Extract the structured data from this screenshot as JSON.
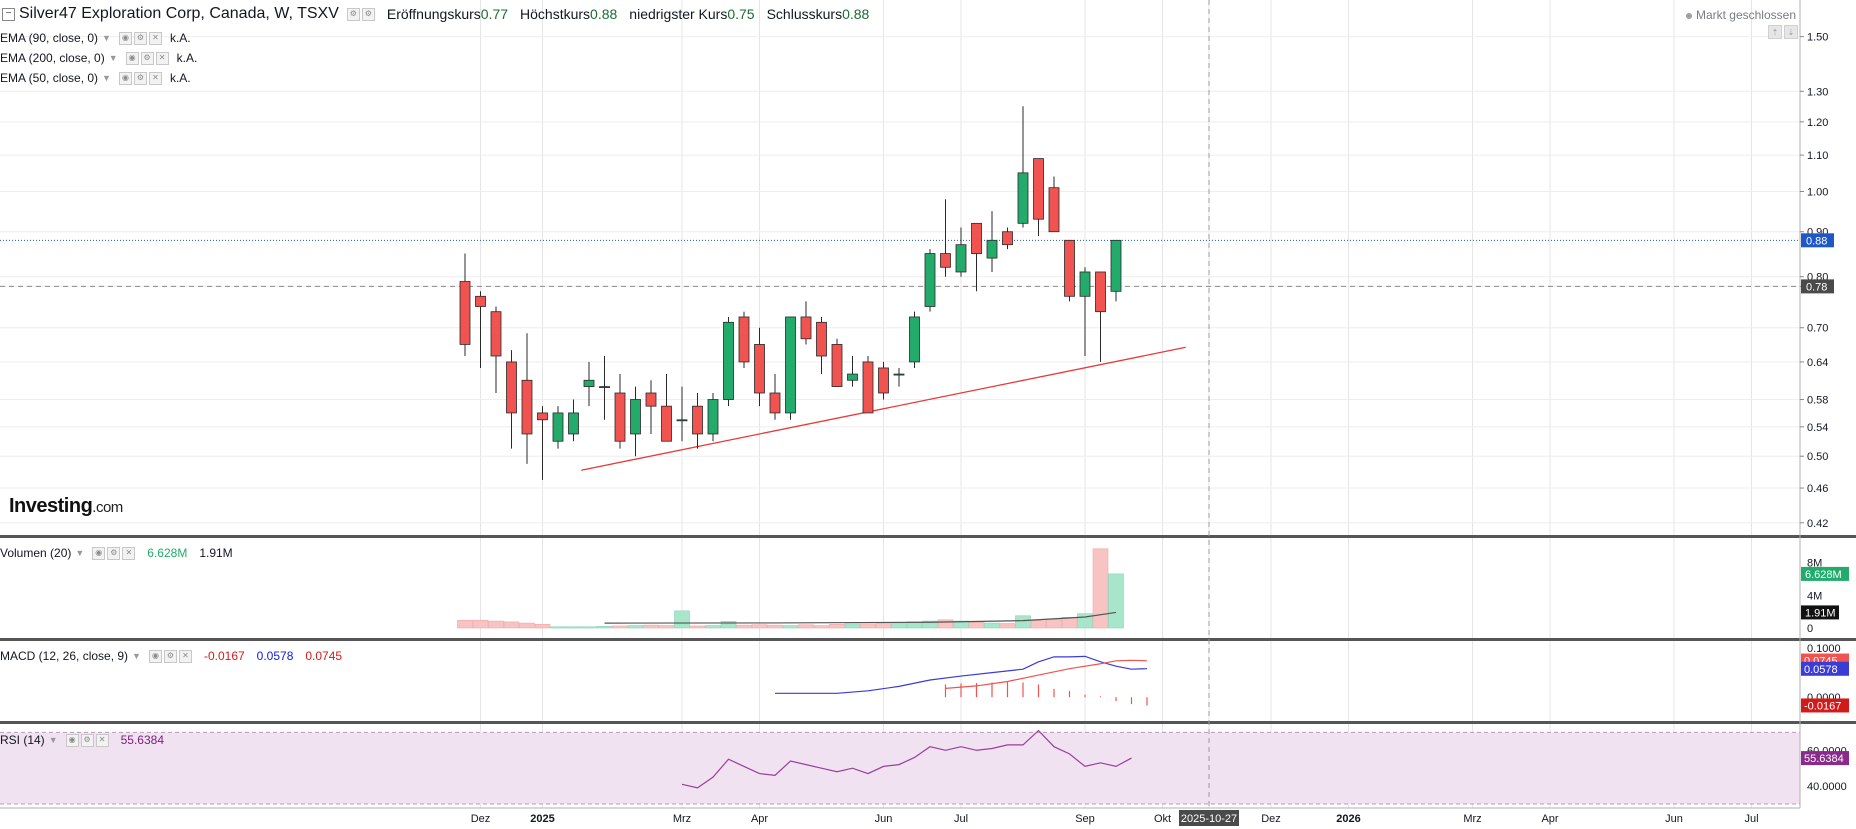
{
  "header": {
    "symbol": "Silver47 Exploration Corp, Canada, W, TSXV",
    "open_label": "Eröffnungskurs",
    "open_value": "0.77",
    "high_label": "Höchstkurs",
    "high_value": "0.88",
    "low_label": "niedrigster Kurs",
    "low_value": "0.75",
    "close_label": "Schlusskurs",
    "close_value": "0.88",
    "market_status": "Markt geschlossen"
  },
  "indicators": [
    {
      "label": "EMA (90, close, 0)",
      "value": "k.A."
    },
    {
      "label": "EMA (200, close, 0)",
      "value": "k.A."
    },
    {
      "label": "EMA (50, close, 0)",
      "value": "k.A."
    }
  ],
  "volume_panel": {
    "label": "Volumen (20)",
    "value": "6.628M",
    "ma_value": "1.91M"
  },
  "macd_panel": {
    "label": "MACD (12, 26, close, 9)",
    "hist_value": "-0.0167",
    "macd_value": "0.0578",
    "signal_value": "0.0745"
  },
  "rsi_panel": {
    "label": "RSI (14)",
    "value": "55.6384"
  },
  "logo": {
    "brand": "Investing",
    "suffix": ".com"
  },
  "colors": {
    "up": "#22ab6b",
    "down": "#f05350",
    "grid": "#e5e5e5",
    "macd": "#3b3bd6",
    "signal": "#f05350",
    "rsi": "#9c3e9c",
    "rsi_band": "#f0e2f0",
    "trend": "#e83a3a",
    "current": "#1f58c6"
  },
  "chart_data": {
    "type": "candlestick",
    "interval": "W",
    "price_axis": {
      "ticks": [
        0.42,
        0.46,
        0.5,
        0.54,
        0.58,
        0.64,
        0.7,
        0.78,
        0.8,
        0.9,
        1.0,
        1.1,
        1.2,
        1.3,
        1.5
      ],
      "tick_labels": [
        "0.42",
        "0.46",
        "0.50",
        "0.54",
        "0.58",
        "0.64",
        "0.70",
        "0.78",
        "0.80",
        "0.90",
        "1.00",
        "1.10",
        "1.20",
        "1.30",
        "1.50"
      ],
      "scale": "log",
      "range": [
        0.41,
        1.6
      ]
    },
    "time_axis": {
      "labels": [
        "Dez",
        "2025",
        "Mrz",
        "Apr",
        "Jun",
        "Jul",
        "Sep",
        "Okt",
        "2025-10-27",
        "Dez",
        "2026",
        "Mrz",
        "Apr",
        "Jun",
        "Jul"
      ],
      "label_week": [
        1,
        5,
        14,
        19,
        27,
        32,
        40,
        45,
        48,
        52,
        57,
        65,
        70,
        78,
        83
      ],
      "bold": [
        false,
        true,
        false,
        false,
        false,
        false,
        false,
        false,
        true,
        false,
        true,
        false,
        false,
        false,
        false
      ],
      "highlight": [
        false,
        false,
        false,
        false,
        false,
        false,
        false,
        false,
        true,
        false,
        false,
        false,
        false,
        false,
        false
      ],
      "crosshair_week": 48
    },
    "candles": [
      {
        "o": 0.79,
        "h": 0.85,
        "l": 0.65,
        "c": 0.67
      },
      {
        "o": 0.76,
        "h": 0.77,
        "l": 0.63,
        "c": 0.74
      },
      {
        "o": 0.73,
        "h": 0.74,
        "l": 0.59,
        "c": 0.65
      },
      {
        "o": 0.64,
        "h": 0.66,
        "l": 0.51,
        "c": 0.56
      },
      {
        "o": 0.61,
        "h": 0.69,
        "l": 0.49,
        "c": 0.53
      },
      {
        "o": 0.56,
        "h": 0.57,
        "l": 0.47,
        "c": 0.55
      },
      {
        "o": 0.52,
        "h": 0.57,
        "l": 0.51,
        "c": 0.56
      },
      {
        "o": 0.53,
        "h": 0.58,
        "l": 0.52,
        "c": 0.56
      },
      {
        "o": 0.6,
        "h": 0.64,
        "l": 0.57,
        "c": 0.61
      },
      {
        "o": 0.6,
        "h": 0.65,
        "l": 0.55,
        "c": 0.6
      },
      {
        "o": 0.59,
        "h": 0.62,
        "l": 0.51,
        "c": 0.52
      },
      {
        "o": 0.53,
        "h": 0.6,
        "l": 0.5,
        "c": 0.58
      },
      {
        "o": 0.59,
        "h": 0.61,
        "l": 0.53,
        "c": 0.57
      },
      {
        "o": 0.57,
        "h": 0.62,
        "l": 0.52,
        "c": 0.52
      },
      {
        "o": 0.55,
        "h": 0.6,
        "l": 0.52,
        "c": 0.55
      },
      {
        "o": 0.57,
        "h": 0.59,
        "l": 0.51,
        "c": 0.53
      },
      {
        "o": 0.53,
        "h": 0.59,
        "l": 0.52,
        "c": 0.58
      },
      {
        "o": 0.58,
        "h": 0.72,
        "l": 0.57,
        "c": 0.71
      },
      {
        "o": 0.72,
        "h": 0.73,
        "l": 0.63,
        "c": 0.64
      },
      {
        "o": 0.67,
        "h": 0.7,
        "l": 0.57,
        "c": 0.59
      },
      {
        "o": 0.59,
        "h": 0.62,
        "l": 0.55,
        "c": 0.56
      },
      {
        "o": 0.56,
        "h": 0.72,
        "l": 0.55,
        "c": 0.72
      },
      {
        "o": 0.72,
        "h": 0.75,
        "l": 0.67,
        "c": 0.68
      },
      {
        "o": 0.71,
        "h": 0.72,
        "l": 0.62,
        "c": 0.65
      },
      {
        "o": 0.67,
        "h": 0.68,
        "l": 0.6,
        "c": 0.6
      },
      {
        "o": 0.61,
        "h": 0.65,
        "l": 0.6,
        "c": 0.62
      },
      {
        "o": 0.64,
        "h": 0.65,
        "l": 0.56,
        "c": 0.56
      },
      {
        "o": 0.63,
        "h": 0.64,
        "l": 0.58,
        "c": 0.59
      },
      {
        "o": 0.62,
        "h": 0.63,
        "l": 0.6,
        "c": 0.62
      },
      {
        "o": 0.64,
        "h": 0.73,
        "l": 0.63,
        "c": 0.72
      },
      {
        "o": 0.74,
        "h": 0.86,
        "l": 0.73,
        "c": 0.85
      },
      {
        "o": 0.85,
        "h": 0.98,
        "l": 0.8,
        "c": 0.82
      },
      {
        "o": 0.81,
        "h": 0.91,
        "l": 0.8,
        "c": 0.87
      },
      {
        "o": 0.92,
        "h": 0.92,
        "l": 0.77,
        "c": 0.85
      },
      {
        "o": 0.84,
        "h": 0.95,
        "l": 0.81,
        "c": 0.88
      },
      {
        "o": 0.9,
        "h": 0.91,
        "l": 0.86,
        "c": 0.87
      },
      {
        "o": 0.92,
        "h": 1.25,
        "l": 0.91,
        "c": 1.05
      },
      {
        "o": 1.09,
        "h": 1.09,
        "l": 0.89,
        "c": 0.93
      },
      {
        "o": 1.01,
        "h": 1.04,
        "l": 0.9,
        "c": 0.9
      },
      {
        "o": 0.88,
        "h": 0.88,
        "l": 0.75,
        "c": 0.76
      },
      {
        "o": 0.76,
        "h": 0.82,
        "l": 0.65,
        "c": 0.81
      },
      {
        "o": 0.81,
        "h": 0.81,
        "l": 0.64,
        "c": 0.73
      },
      {
        "o": 0.77,
        "h": 0.88,
        "l": 0.75,
        "c": 0.88
      }
    ],
    "trend_line": [
      [
        7.5,
        0.482
      ],
      [
        46.5,
        0.665
      ]
    ],
    "price_markers": [
      {
        "price": 0.88,
        "label": "0.88",
        "style": "current"
      },
      {
        "price": 0.78,
        "label": "0.78",
        "style": "dashed"
      }
    ],
    "volume": {
      "values_m": [
        0.95,
        0.95,
        0.85,
        0.75,
        0.6,
        0.45,
        0.15,
        0.15,
        0.15,
        0.2,
        0.25,
        0.3,
        0.35,
        0.3,
        2.1,
        0.25,
        0.3,
        0.8,
        0.35,
        0.4,
        0.35,
        0.3,
        0.4,
        0.3,
        0.45,
        0.5,
        0.5,
        0.55,
        0.55,
        0.75,
        0.85,
        1.0,
        0.85,
        0.7,
        0.6,
        0.55,
        1.5,
        0.9,
        1.1,
        1.3,
        1.75,
        9.7,
        6.628
      ],
      "ma": [
        [
          9,
          0.6
        ],
        [
          20,
          0.62
        ],
        [
          30,
          0.7
        ],
        [
          36,
          0.9
        ],
        [
          40,
          1.35
        ],
        [
          42,
          1.91
        ]
      ],
      "ticks": [
        0,
        4,
        8
      ],
      "tick_labels": [
        "0",
        "4M",
        "8M"
      ],
      "range": [
        0,
        9.8
      ]
    },
    "macd": {
      "macd": [
        [
          20,
          0.008
        ],
        [
          22,
          0.008
        ],
        [
          24,
          0.008
        ],
        [
          26,
          0.013
        ],
        [
          28,
          0.022
        ],
        [
          30,
          0.035
        ],
        [
          32,
          0.043
        ],
        [
          34,
          0.05
        ],
        [
          36,
          0.057
        ],
        [
          37,
          0.072
        ],
        [
          38,
          0.082
        ],
        [
          39,
          0.082
        ],
        [
          40,
          0.083
        ],
        [
          41,
          0.072
        ],
        [
          42,
          0.063
        ],
        [
          43,
          0.057
        ],
        [
          44,
          0.058
        ]
      ],
      "signal": [
        [
          31,
          0.018
        ],
        [
          33,
          0.023
        ],
        [
          35,
          0.032
        ],
        [
          37,
          0.045
        ],
        [
          39,
          0.058
        ],
        [
          41,
          0.068
        ],
        [
          42,
          0.074
        ],
        [
          43,
          0.075
        ],
        [
          44,
          0.074
        ]
      ],
      "hist": [
        [
          31,
          0.026
        ],
        [
          32,
          0.028
        ],
        [
          33,
          0.029
        ],
        [
          34,
          0.03
        ],
        [
          35,
          0.031
        ],
        [
          36,
          0.03
        ],
        [
          37,
          0.026
        ],
        [
          38,
          0.017
        ],
        [
          39,
          0.013
        ],
        [
          40,
          0.005
        ],
        [
          41,
          0.002
        ],
        [
          42,
          -0.008
        ],
        [
          43,
          -0.014
        ],
        [
          44,
          -0.017
        ]
      ],
      "ticks": [
        0.0,
        0.1
      ],
      "tick_labels": [
        "0.0000",
        "0.1000"
      ],
      "range": [
        -0.03,
        0.1
      ]
    },
    "rsi": {
      "values": [
        [
          14,
          41
        ],
        [
          15,
          39
        ],
        [
          16,
          45
        ],
        [
          17,
          55
        ],
        [
          18,
          51
        ],
        [
          19,
          47
        ],
        [
          20,
          46
        ],
        [
          21,
          54
        ],
        [
          22,
          52
        ],
        [
          23,
          50
        ],
        [
          24,
          48
        ],
        [
          25,
          50
        ],
        [
          26,
          47
        ],
        [
          27,
          51
        ],
        [
          28,
          52
        ],
        [
          29,
          56
        ],
        [
          30,
          62
        ],
        [
          31,
          60
        ],
        [
          32,
          62
        ],
        [
          33,
          60
        ],
        [
          34,
          61
        ],
        [
          35,
          63
        ],
        [
          36,
          63
        ],
        [
          37,
          71
        ],
        [
          38,
          62
        ],
        [
          39,
          58
        ],
        [
          40,
          51
        ],
        [
          41,
          53
        ],
        [
          42,
          51
        ],
        [
          43,
          55.6384
        ]
      ],
      "band": [
        30,
        70
      ],
      "ticks": [
        40,
        60
      ],
      "tick_labels": [
        "40.0000",
        "60.0000"
      ],
      "range": [
        30,
        73
      ]
    }
  }
}
